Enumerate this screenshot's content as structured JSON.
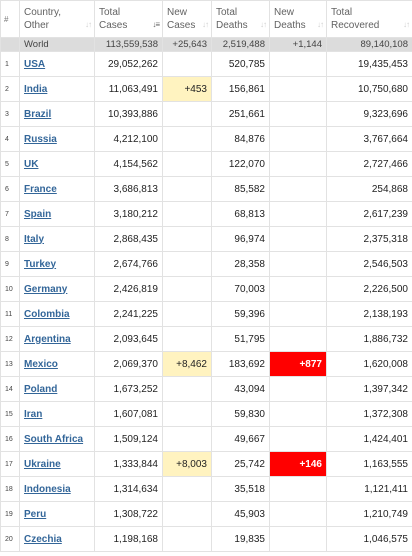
{
  "colors": {
    "new_cases_highlight": "#fff3c0",
    "new_deaths_highlight": "#ff0000",
    "link": "#336699",
    "world_row_bg": "#dcdcdc"
  },
  "header": {
    "num": "#",
    "country": [
      "Country,",
      "Other"
    ],
    "total_cases": [
      "Total",
      "Cases"
    ],
    "new_cases": [
      "New",
      "Cases"
    ],
    "total_deaths": [
      "Total",
      "Deaths"
    ],
    "new_deaths": [
      "New",
      "Deaths"
    ],
    "total_recovered": [
      "Total",
      "Recovered"
    ]
  },
  "world": {
    "country": "World",
    "total_cases": "113,559,538",
    "new_cases": "+25,643",
    "total_deaths": "2,519,488",
    "new_deaths": "+1,144",
    "total_recovered": "89,140,108"
  },
  "rows": [
    {
      "idx": "1",
      "country": "USA",
      "total_cases": "29,052,262",
      "new_cases": "",
      "total_deaths": "520,785",
      "new_deaths": "",
      "total_recovered": "19,435,453"
    },
    {
      "idx": "2",
      "country": "India",
      "total_cases": "11,063,491",
      "new_cases": "+453",
      "total_deaths": "156,861",
      "new_deaths": "",
      "total_recovered": "10,750,680"
    },
    {
      "idx": "3",
      "country": "Brazil",
      "total_cases": "10,393,886",
      "new_cases": "",
      "total_deaths": "251,661",
      "new_deaths": "",
      "total_recovered": "9,323,696"
    },
    {
      "idx": "4",
      "country": "Russia",
      "total_cases": "4,212,100",
      "new_cases": "",
      "total_deaths": "84,876",
      "new_deaths": "",
      "total_recovered": "3,767,664"
    },
    {
      "idx": "5",
      "country": "UK",
      "total_cases": "4,154,562",
      "new_cases": "",
      "total_deaths": "122,070",
      "new_deaths": "",
      "total_recovered": "2,727,466"
    },
    {
      "idx": "6",
      "country": "France",
      "total_cases": "3,686,813",
      "new_cases": "",
      "total_deaths": "85,582",
      "new_deaths": "",
      "total_recovered": "254,868"
    },
    {
      "idx": "7",
      "country": "Spain",
      "total_cases": "3,180,212",
      "new_cases": "",
      "total_deaths": "68,813",
      "new_deaths": "",
      "total_recovered": "2,617,239"
    },
    {
      "idx": "8",
      "country": "Italy",
      "total_cases": "2,868,435",
      "new_cases": "",
      "total_deaths": "96,974",
      "new_deaths": "",
      "total_recovered": "2,375,318"
    },
    {
      "idx": "9",
      "country": "Turkey",
      "total_cases": "2,674,766",
      "new_cases": "",
      "total_deaths": "28,358",
      "new_deaths": "",
      "total_recovered": "2,546,503"
    },
    {
      "idx": "10",
      "country": "Germany",
      "total_cases": "2,426,819",
      "new_cases": "",
      "total_deaths": "70,003",
      "new_deaths": "",
      "total_recovered": "2,226,500"
    },
    {
      "idx": "11",
      "country": "Colombia",
      "total_cases": "2,241,225",
      "new_cases": "",
      "total_deaths": "59,396",
      "new_deaths": "",
      "total_recovered": "2,138,193"
    },
    {
      "idx": "12",
      "country": "Argentina",
      "total_cases": "2,093,645",
      "new_cases": "",
      "total_deaths": "51,795",
      "new_deaths": "",
      "total_recovered": "1,886,732"
    },
    {
      "idx": "13",
      "country": "Mexico",
      "total_cases": "2,069,370",
      "new_cases": "+8,462",
      "total_deaths": "183,692",
      "new_deaths": "+877",
      "total_recovered": "1,620,008"
    },
    {
      "idx": "14",
      "country": "Poland",
      "total_cases": "1,673,252",
      "new_cases": "",
      "total_deaths": "43,094",
      "new_deaths": "",
      "total_recovered": "1,397,342"
    },
    {
      "idx": "15",
      "country": "Iran",
      "total_cases": "1,607,081",
      "new_cases": "",
      "total_deaths": "59,830",
      "new_deaths": "",
      "total_recovered": "1,372,308"
    },
    {
      "idx": "16",
      "country": "South Africa",
      "total_cases": "1,509,124",
      "new_cases": "",
      "total_deaths": "49,667",
      "new_deaths": "",
      "total_recovered": "1,424,401"
    },
    {
      "idx": "17",
      "country": "Ukraine",
      "total_cases": "1,333,844",
      "new_cases": "+8,003",
      "total_deaths": "25,742",
      "new_deaths": "+146",
      "total_recovered": "1,163,555"
    },
    {
      "idx": "18",
      "country": "Indonesia",
      "total_cases": "1,314,634",
      "new_cases": "",
      "total_deaths": "35,518",
      "new_deaths": "",
      "total_recovered": "1,121,411"
    },
    {
      "idx": "19",
      "country": "Peru",
      "total_cases": "1,308,722",
      "new_cases": "",
      "total_deaths": "45,903",
      "new_deaths": "",
      "total_recovered": "1,210,749"
    },
    {
      "idx": "20",
      "country": "Czechia",
      "total_cases": "1,198,168",
      "new_cases": "",
      "total_deaths": "19,835",
      "new_deaths": "",
      "total_recovered": "1,046,575"
    }
  ]
}
